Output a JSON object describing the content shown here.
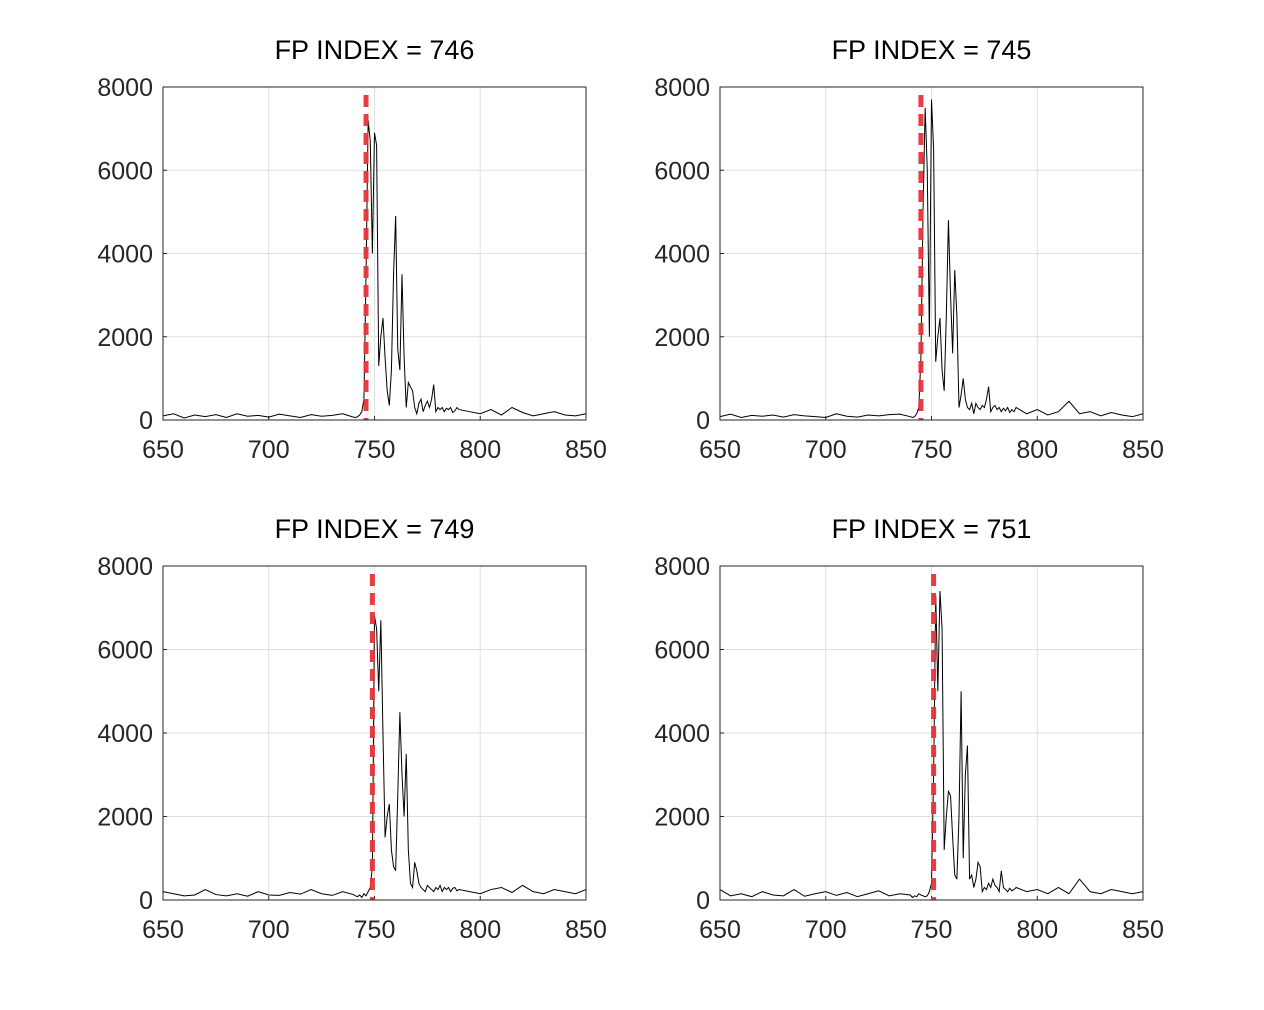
{
  "chart_data": [
    {
      "type": "line",
      "title": "FP INDEX = 746",
      "color": "#000000",
      "vline": 746,
      "vline_color": "#e8333a",
      "xlim": [
        650,
        850
      ],
      "ylim": [
        0,
        8000
      ],
      "xticks": [
        650,
        700,
        750,
        800,
        850
      ],
      "yticks": [
        0,
        2000,
        4000,
        6000,
        8000
      ],
      "grid": true,
      "x": [
        650,
        655,
        660,
        665,
        670,
        675,
        680,
        685,
        690,
        695,
        700,
        705,
        710,
        715,
        720,
        725,
        730,
        735,
        740,
        741,
        742,
        743,
        744,
        745,
        746,
        747,
        748,
        749,
        750,
        751,
        752,
        753,
        754,
        755,
        756,
        757,
        758,
        759,
        760,
        761,
        762,
        763,
        764,
        765,
        766,
        767,
        768,
        769,
        770,
        771,
        772,
        773,
        774,
        775,
        776,
        777,
        778,
        779,
        780,
        781,
        782,
        783,
        784,
        785,
        786,
        787,
        788,
        789,
        790,
        795,
        800,
        805,
        810,
        815,
        820,
        825,
        830,
        835,
        840,
        845,
        850
      ],
      "values": [
        100,
        150,
        50,
        120,
        80,
        130,
        60,
        150,
        90,
        110,
        70,
        140,
        100,
        60,
        130,
        90,
        110,
        150,
        70,
        60,
        80,
        120,
        200,
        500,
        3500,
        7200,
        6700,
        4000,
        6900,
        6600,
        1300,
        2000,
        2450,
        1500,
        700,
        350,
        1200,
        3500,
        4900,
        1700,
        1200,
        3500,
        1500,
        300,
        900,
        800,
        700,
        300,
        150,
        400,
        500,
        200,
        350,
        450,
        300,
        500,
        850,
        200,
        300,
        250,
        300,
        200,
        280,
        250,
        300,
        180,
        220,
        300,
        250,
        200,
        150,
        250,
        120,
        300,
        180,
        100,
        150,
        200,
        120,
        100,
        150
      ]
    },
    {
      "type": "line",
      "title": "FP INDEX = 745",
      "color": "#000000",
      "vline": 745,
      "vline_color": "#e8333a",
      "xlim": [
        650,
        850
      ],
      "ylim": [
        0,
        8000
      ],
      "xticks": [
        650,
        700,
        750,
        800,
        850
      ],
      "yticks": [
        0,
        2000,
        4000,
        6000,
        8000
      ],
      "grid": true,
      "x": [
        650,
        655,
        660,
        665,
        670,
        675,
        680,
        685,
        690,
        695,
        700,
        705,
        710,
        715,
        720,
        725,
        730,
        735,
        740,
        741,
        742,
        743,
        744,
        745,
        746,
        747,
        748,
        749,
        750,
        751,
        752,
        753,
        754,
        755,
        756,
        757,
        758,
        759,
        760,
        761,
        762,
        763,
        764,
        765,
        766,
        767,
        768,
        769,
        770,
        771,
        772,
        773,
        774,
        775,
        776,
        777,
        778,
        779,
        780,
        781,
        782,
        783,
        784,
        785,
        786,
        787,
        788,
        789,
        790,
        795,
        800,
        805,
        810,
        815,
        820,
        825,
        830,
        835,
        840,
        845,
        850
      ],
      "values": [
        80,
        140,
        60,
        110,
        90,
        120,
        70,
        130,
        100,
        80,
        60,
        150,
        90,
        70,
        120,
        100,
        130,
        140,
        80,
        60,
        80,
        150,
        300,
        1500,
        5000,
        7500,
        6000,
        2000,
        7700,
        6500,
        1400,
        2000,
        2450,
        1200,
        700,
        2500,
        4800,
        3000,
        1600,
        3600,
        2500,
        300,
        600,
        1000,
        500,
        300,
        250,
        400,
        150,
        400,
        300,
        250,
        350,
        300,
        500,
        800,
        200,
        300,
        350,
        250,
        300,
        200,
        280,
        220,
        300,
        180,
        250,
        200,
        300,
        150,
        250,
        120,
        200,
        450,
        150,
        200,
        100,
        180,
        120,
        80,
        150
      ]
    },
    {
      "type": "line",
      "title": "FP INDEX = 749",
      "color": "#000000",
      "vline": 749,
      "vline_color": "#e8333a",
      "xlim": [
        650,
        850
      ],
      "ylim": [
        0,
        8000
      ],
      "xticks": [
        650,
        700,
        750,
        800,
        850
      ],
      "yticks": [
        0,
        2000,
        4000,
        6000,
        8000
      ],
      "grid": true,
      "x": [
        650,
        655,
        660,
        665,
        670,
        675,
        680,
        685,
        690,
        695,
        700,
        705,
        710,
        715,
        720,
        725,
        730,
        735,
        740,
        741,
        742,
        743,
        744,
        745,
        746,
        747,
        748,
        749,
        750,
        751,
        752,
        753,
        754,
        755,
        756,
        757,
        758,
        759,
        760,
        761,
        762,
        763,
        764,
        765,
        766,
        767,
        768,
        769,
        770,
        771,
        772,
        773,
        774,
        775,
        776,
        777,
        778,
        779,
        780,
        781,
        782,
        783,
        784,
        785,
        786,
        787,
        788,
        789,
        790,
        795,
        800,
        805,
        810,
        815,
        820,
        825,
        830,
        835,
        840,
        845,
        850
      ],
      "values": [
        200,
        150,
        100,
        120,
        250,
        130,
        100,
        150,
        90,
        200,
        120,
        110,
        180,
        140,
        250,
        150,
        110,
        200,
        130,
        100,
        80,
        120,
        60,
        150,
        100,
        200,
        300,
        800,
        6800,
        6500,
        5000,
        6700,
        4000,
        1500,
        2000,
        2300,
        1200,
        800,
        700,
        2500,
        4500,
        3000,
        2000,
        3500,
        1200,
        400,
        300,
        900,
        700,
        400,
        300,
        250,
        200,
        350,
        300,
        250,
        200,
        300,
        250,
        350,
        200,
        300,
        250,
        300,
        200,
        280,
        300,
        220,
        250,
        200,
        150,
        250,
        300,
        180,
        350,
        200,
        150,
        250,
        200,
        150,
        250
      ]
    },
    {
      "type": "line",
      "title": "FP INDEX = 751",
      "color": "#000000",
      "vline": 751,
      "vline_color": "#e8333a",
      "xlim": [
        650,
        850
      ],
      "ylim": [
        0,
        8000
      ],
      "xticks": [
        650,
        700,
        750,
        800,
        850
      ],
      "yticks": [
        0,
        2000,
        4000,
        6000,
        8000
      ],
      "grid": true,
      "x": [
        650,
        655,
        660,
        665,
        670,
        675,
        680,
        685,
        690,
        695,
        700,
        705,
        710,
        715,
        720,
        725,
        730,
        735,
        740,
        741,
        742,
        743,
        744,
        745,
        746,
        747,
        748,
        749,
        750,
        751,
        752,
        753,
        754,
        755,
        756,
        757,
        758,
        759,
        760,
        761,
        762,
        763,
        764,
        765,
        766,
        767,
        768,
        769,
        770,
        771,
        772,
        773,
        774,
        775,
        776,
        777,
        778,
        779,
        780,
        781,
        782,
        783,
        784,
        785,
        786,
        787,
        788,
        789,
        790,
        795,
        800,
        805,
        810,
        815,
        820,
        825,
        830,
        835,
        840,
        845,
        850
      ],
      "values": [
        250,
        100,
        150,
        80,
        200,
        120,
        100,
        250,
        90,
        150,
        200,
        110,
        180,
        80,
        150,
        220,
        100,
        150,
        120,
        60,
        100,
        80,
        150,
        120,
        100,
        80,
        100,
        200,
        400,
        3000,
        7300,
        5000,
        7400,
        6500,
        1200,
        2000,
        2600,
        2500,
        1500,
        600,
        500,
        2000,
        5000,
        1000,
        3000,
        3700,
        500,
        600,
        300,
        500,
        900,
        800,
        200,
        300,
        250,
        400,
        300,
        500,
        350,
        300,
        200,
        700,
        300,
        250,
        200,
        280,
        220,
        250,
        300,
        200,
        250,
        150,
        300,
        150,
        500,
        200,
        150,
        250,
        200,
        150,
        200
      ]
    }
  ]
}
